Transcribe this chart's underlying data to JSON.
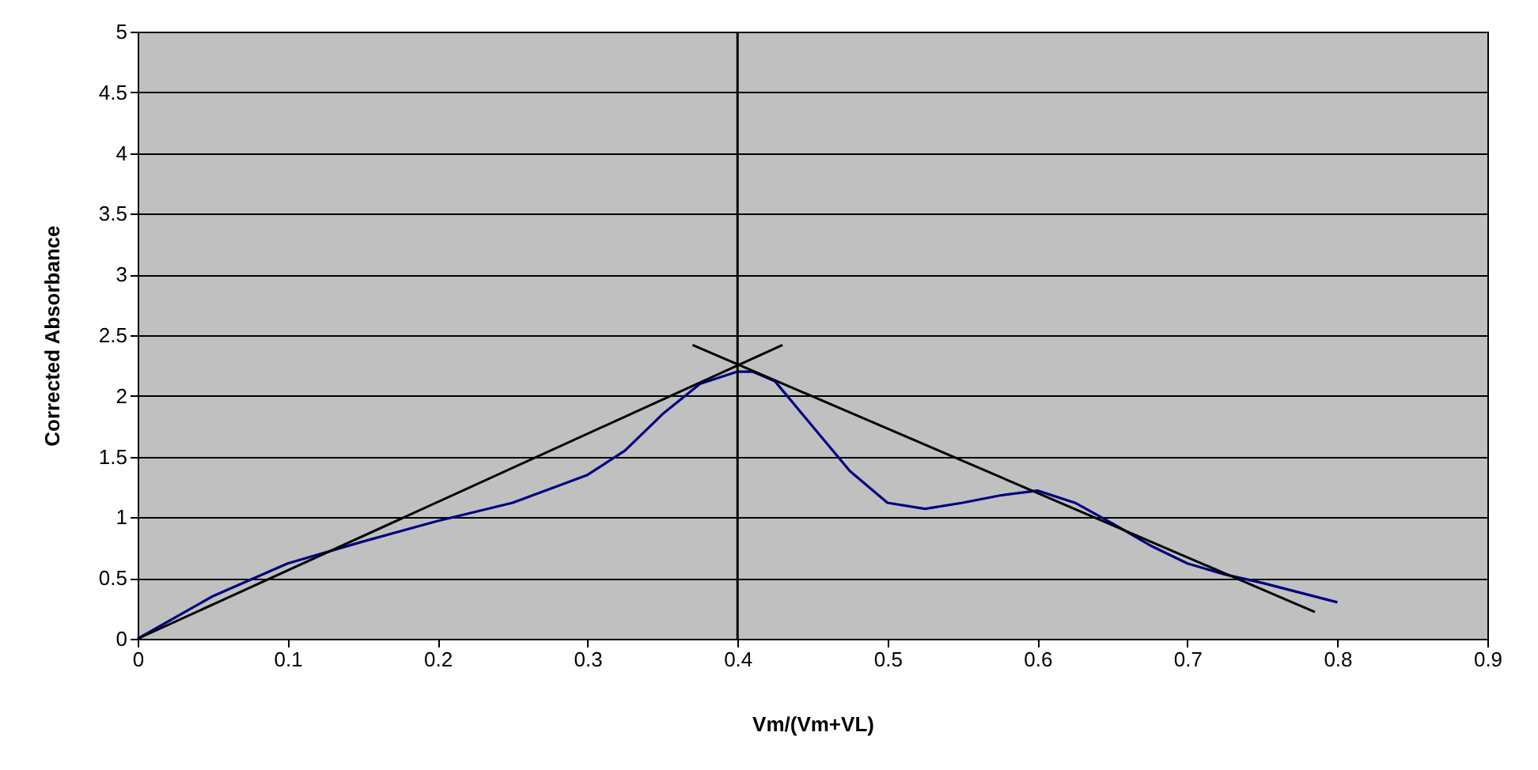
{
  "chart_data": {
    "type": "line",
    "xlabel": "Vm/(Vm+VL)",
    "ylabel": "Corrected Absorbance",
    "series": [
      {
        "color": "#000080",
        "x": [
          0,
          0.05,
          0.1,
          0.15,
          0.2,
          0.25,
          0.3,
          0.325,
          0.35,
          0.375,
          0.4,
          0.41,
          0.425,
          0.45,
          0.475,
          0.5,
          0.525,
          0.55,
          0.575,
          0.6,
          0.625,
          0.65,
          0.675,
          0.7,
          0.725,
          0.75,
          0.8
        ],
        "values": [
          0,
          0.35,
          0.62,
          0.8,
          0.97,
          1.12,
          1.35,
          1.55,
          1.85,
          2.1,
          2.2,
          2.2,
          2.12,
          1.75,
          1.38,
          1.12,
          1.07,
          1.12,
          1.18,
          1.22,
          1.12,
          0.95,
          0.77,
          0.62,
          0.53,
          0.46,
          0.3
        ]
      },
      {
        "color": "#000000",
        "x": [
          0,
          0.43
        ],
        "values": [
          0,
          2.42
        ]
      },
      {
        "color": "#000000",
        "x": [
          0.37,
          0.785
        ],
        "values": [
          2.42,
          0.22
        ]
      }
    ],
    "ref_lines": [
      {
        "axis": "x",
        "value": 0.4,
        "color": "#000000"
      }
    ],
    "xlim": [
      0,
      0.9
    ],
    "xticks": [
      0,
      0.1,
      0.2,
      0.3,
      0.4,
      0.5,
      0.6,
      0.7,
      0.8,
      0.9
    ],
    "ylim": [
      0,
      5
    ],
    "yticks": [
      0,
      0.5,
      1,
      1.5,
      2,
      2.5,
      3,
      3.5,
      4,
      4.5,
      5
    ],
    "grid": "y",
    "marker": "none",
    "line_style": "solid"
  }
}
